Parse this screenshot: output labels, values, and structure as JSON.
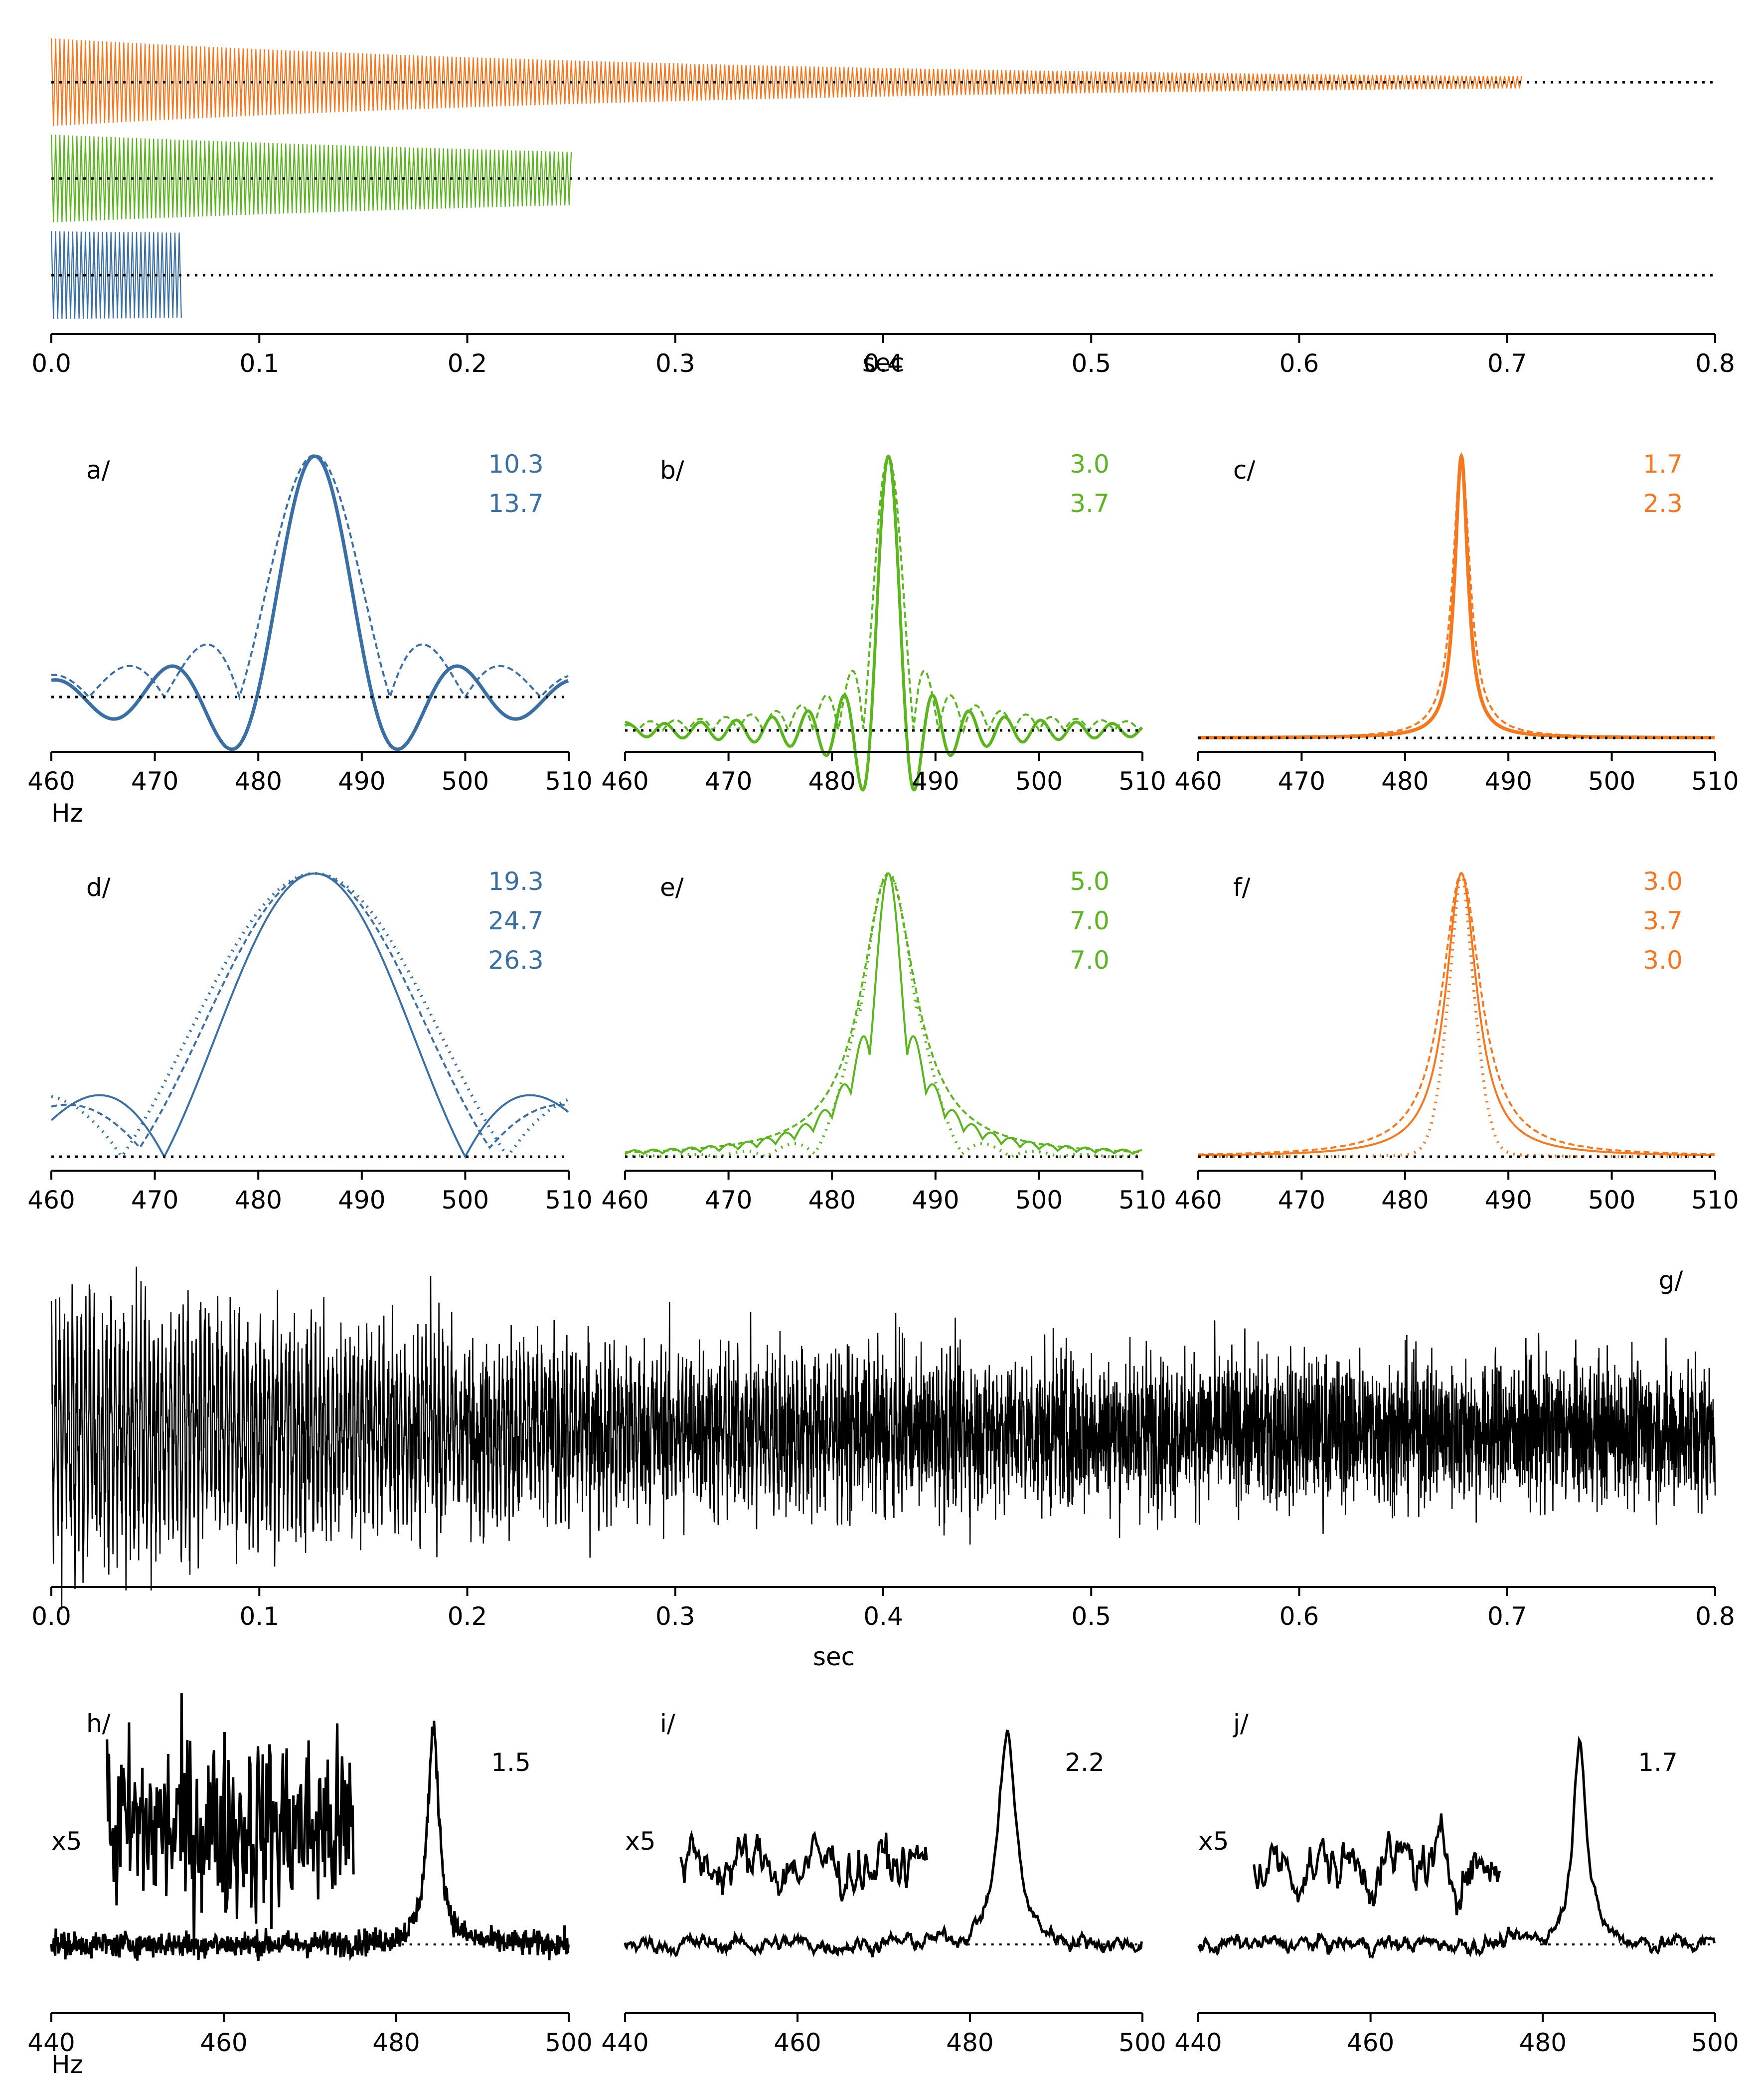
{
  "colors": {
    "blue": "#3a6fa5",
    "green": "#5bb51e",
    "orange": "#f5781f",
    "black": "#000000"
  },
  "chart_data": [
    {
      "id": "top",
      "type": "line",
      "xlabel": "sec",
      "xlim": [
        0,
        0.8
      ],
      "x_ticks": [
        "0.0",
        "0.1",
        "0.2",
        "0.3",
        "0.4",
        "0.5",
        "0.6",
        "0.7",
        "0.8"
      ],
      "series": [
        {
          "color": "orange",
          "duration": 0.707,
          "decay": 2.8
        },
        {
          "color": "green",
          "duration": 0.25,
          "decay": 2.0
        },
        {
          "color": "blue",
          "duration": 0.063,
          "decay": 0.5
        }
      ]
    },
    {
      "id": "a",
      "type": "line",
      "label": "a/",
      "xlabel": "Hz",
      "xlim": [
        460,
        515
      ],
      "x_ticks": [
        "460",
        "470",
        "480",
        "490",
        "500",
        "510"
      ],
      "color": "blue",
      "annotations": [
        "10.3",
        "13.7"
      ],
      "curves": [
        "sinc",
        "sinc-decay"
      ],
      "T": 0.0625
    },
    {
      "id": "b",
      "type": "line",
      "label": "b/",
      "xlabel": "",
      "xlim": [
        460,
        515
      ],
      "x_ticks": [
        "460",
        "470",
        "480",
        "490",
        "500",
        "510"
      ],
      "color": "green",
      "annotations": [
        "3.0",
        "3.7"
      ],
      "curves": [
        "sinc",
        "sinc-decay"
      ],
      "T": 0.25
    },
    {
      "id": "c",
      "type": "line",
      "label": "c/",
      "xlabel": "",
      "xlim": [
        460,
        515
      ],
      "x_ticks": [
        "460",
        "470",
        "480",
        "490",
        "500",
        "510"
      ],
      "color": "orange",
      "annotations": [
        "1.7",
        "2.3"
      ],
      "curves": [
        "lorentz",
        "lorentz-wide"
      ],
      "T": 0.707
    },
    {
      "id": "d",
      "type": "line",
      "label": "d/",
      "xlabel": "",
      "xlim": [
        460,
        515
      ],
      "x_ticks": [
        "460",
        "470",
        "480",
        "490",
        "500",
        "510"
      ],
      "color": "blue",
      "annotations": [
        "19.3",
        "24.7",
        "26.3"
      ],
      "curves": [
        "sinc",
        "sinc-decay",
        "gauss"
      ],
      "T": 0.03125
    },
    {
      "id": "e",
      "type": "line",
      "label": "e/",
      "xlabel": "",
      "xlim": [
        460,
        515
      ],
      "x_ticks": [
        "460",
        "470",
        "480",
        "490",
        "500",
        "510"
      ],
      "color": "green",
      "annotations": [
        "5.0",
        "7.0",
        "7.0"
      ],
      "curves": [
        "sinc-lorentz",
        "lorentz-wide",
        "gauss-dotted"
      ],
      "T": 0.25
    },
    {
      "id": "f",
      "type": "line",
      "label": "f/",
      "xlabel": "",
      "xlim": [
        460,
        515
      ],
      "x_ticks": [
        "460",
        "470",
        "480",
        "490",
        "500",
        "510"
      ],
      "color": "orange",
      "annotations": [
        "3.0",
        "3.7",
        "3.0"
      ],
      "curves": [
        "lorentz",
        "lorentz-wide",
        "gauss-dotted"
      ],
      "T": 0.707
    },
    {
      "id": "g",
      "type": "line",
      "label": "g/",
      "xlabel": "sec",
      "xlim": [
        0,
        0.8
      ],
      "x_ticks": [
        "0.0",
        "0.1",
        "0.2",
        "0.3",
        "0.4",
        "0.5",
        "0.6",
        "0.7",
        "0.8"
      ],
      "color": "black"
    },
    {
      "id": "h",
      "type": "line",
      "label": "h/",
      "xlabel": "Hz",
      "xlim": [
        440,
        505
      ],
      "x_ticks": [
        "440",
        "460",
        "480",
        "500"
      ],
      "color": "black",
      "annotations": [
        "1.5"
      ],
      "inset_label": "x5",
      "noise": "high"
    },
    {
      "id": "i",
      "type": "line",
      "label": "i/",
      "xlabel": "",
      "xlim": [
        440,
        505
      ],
      "x_ticks": [
        "440",
        "460",
        "480",
        "500"
      ],
      "color": "black",
      "annotations": [
        "2.2"
      ],
      "inset_label": "x5",
      "noise": "smooth"
    },
    {
      "id": "j",
      "type": "line",
      "label": "j/",
      "xlabel": "",
      "xlim": [
        440,
        505
      ],
      "x_ticks": [
        "440",
        "460",
        "480",
        "500"
      ],
      "color": "black",
      "annotations": [
        "1.7"
      ],
      "inset_label": "x5",
      "noise": "smooth"
    }
  ]
}
